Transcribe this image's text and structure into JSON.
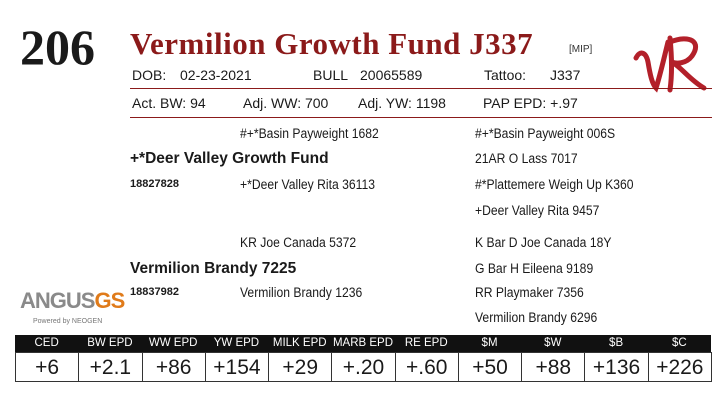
{
  "lot": "206",
  "name": "Vermilion Growth Fund J337",
  "tag": "[MIP]",
  "info": {
    "dob_label": "DOB:",
    "dob": "02-23-2021",
    "sex": "BULL",
    "registration": "20065589",
    "tattoo_label": "Tattoo:",
    "tattoo": "J337"
  },
  "performance": [
    "Act. BW: 94",
    "Adj. WW: 700",
    "Adj. YW: 1198",
    "PAP EPD: +.97"
  ],
  "pedigree": {
    "sire": {
      "name": "+*Deer Valley Growth Fund",
      "registration": "18827828"
    },
    "sire_sire": "#+*Basin Payweight 1682",
    "sire_dam": "+*Deer Valley Rita 36113",
    "sire_grandparents": [
      "#+*Basin Payweight 006S",
      "21AR O Lass 7017",
      "#*Plattemere Weigh Up K360",
      "+Deer Valley Rita 9457"
    ],
    "dam": {
      "name": "Vermilion Brandy 7225",
      "registration": "18837982"
    },
    "dam_sire": "KR Joe Canada 5372",
    "dam_dam": "Vermilion Brandy 1236",
    "dam_grandparents": [
      "K Bar D Joe Canada 18Y",
      "G Bar H Eileena 9189",
      "RR Playmaker 7356",
      "Vermilion Brandy 6296"
    ]
  },
  "logo": {
    "brand": "ANGUS",
    "suffix": "GS",
    "powered": "Powered by NEOGEN"
  },
  "epd": {
    "headers": [
      "CED",
      "BW EPD",
      "WW EPD",
      "YW EPD",
      "MILK EPD",
      "MARB EPD",
      "RE EPD",
      "$M",
      "$W",
      "$B",
      "$C"
    ],
    "values": [
      "+6",
      "+2.1",
      "+86",
      "+154",
      "+29",
      "+.20",
      "+.60",
      "+50",
      "+88",
      "+136",
      "+226"
    ]
  }
}
